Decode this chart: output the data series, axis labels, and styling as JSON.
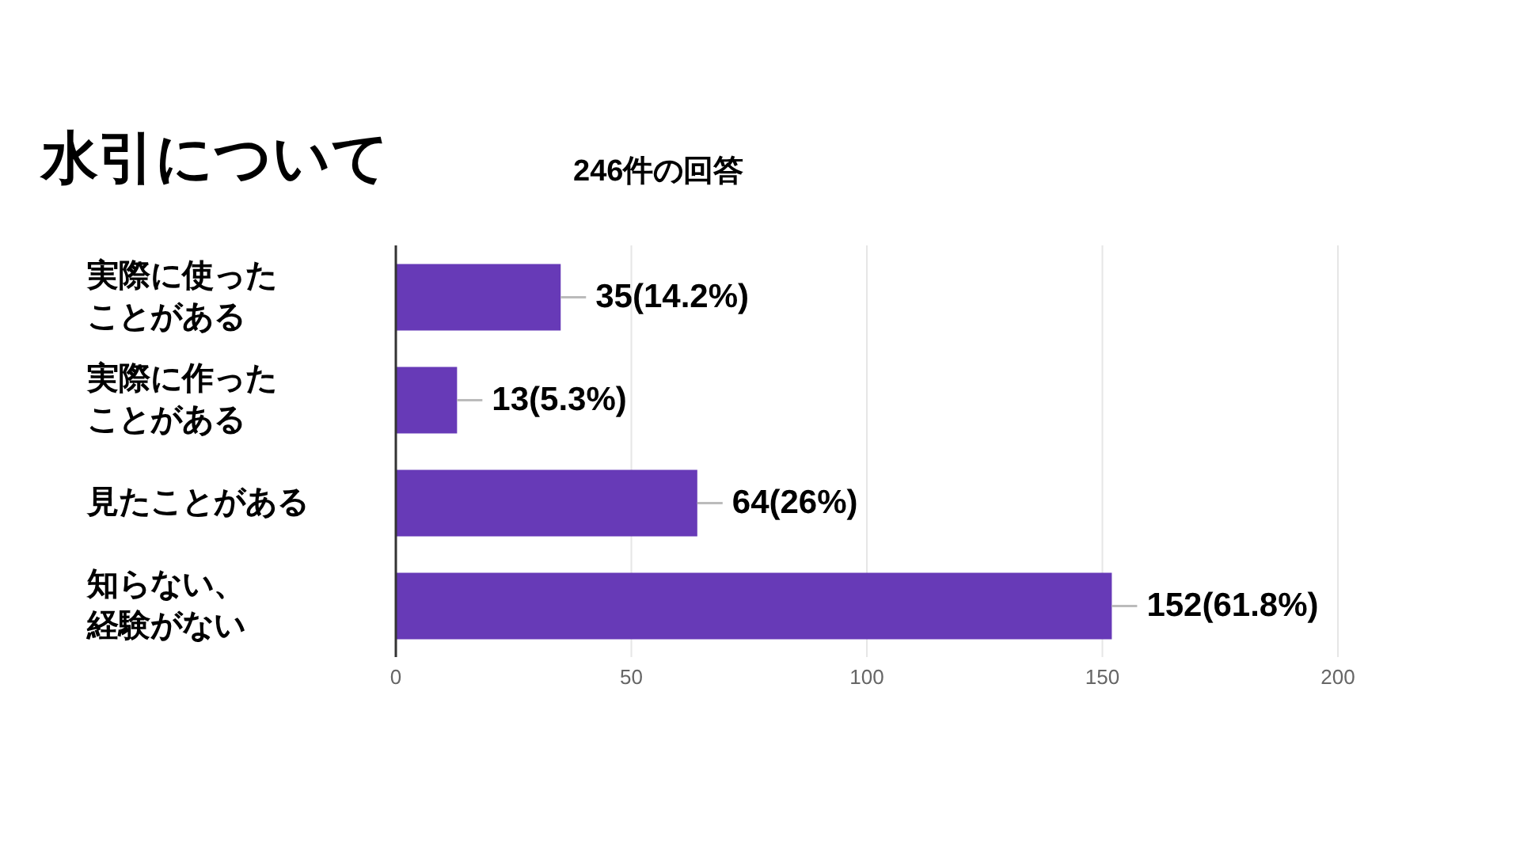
{
  "chart_data": {
    "type": "bar",
    "orientation": "horizontal",
    "title": "水引について",
    "subtitle": "246件の回答",
    "categories": [
      "実際に使ったことがある",
      "実際に作ったことがある",
      "見たことがある",
      "知らない、経験がない"
    ],
    "values": [
      35,
      13,
      64,
      152
    ],
    "value_labels": [
      "35(14.2%)",
      "13(5.3%)",
      "64(26%)",
      "152(61.8%)"
    ],
    "color": "#673ab7",
    "xlim": [
      0,
      200
    ],
    "xticks": [
      0,
      50,
      100,
      150,
      200
    ],
    "grid": "x",
    "legend": false
  }
}
